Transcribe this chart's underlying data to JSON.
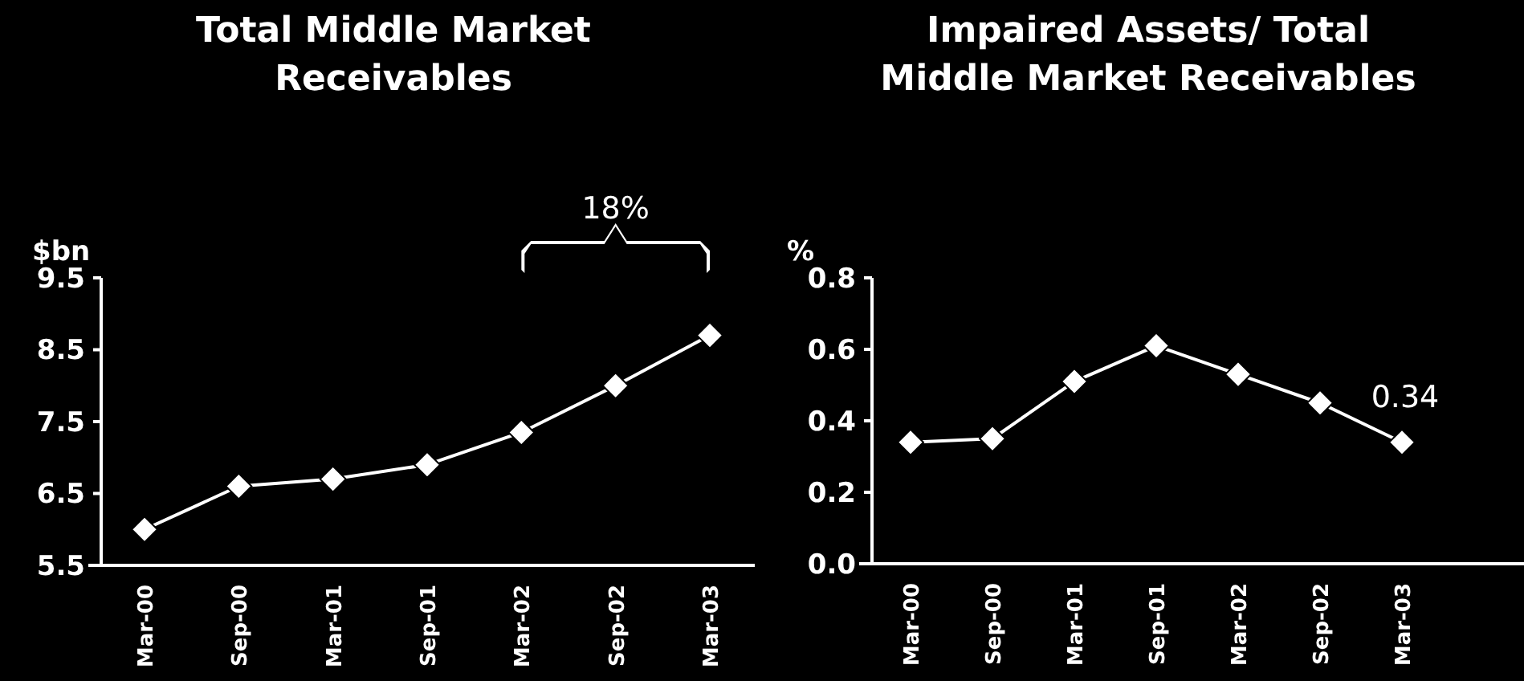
{
  "chart_data": [
    {
      "type": "line",
      "title": "Total Middle Market\nReceivables",
      "ylabel": "$bn",
      "categories": [
        "Mar-00",
        "Sep-00",
        "Mar-01",
        "Sep-01",
        "Mar-02",
        "Sep-02",
        "Mar-03"
      ],
      "series": [
        {
          "color": "#ffffff",
          "values": [
            6.0,
            6.6,
            6.7,
            6.9,
            7.35,
            8.0,
            8.7
          ]
        }
      ],
      "ylim": [
        5.5,
        9.5
      ],
      "yticks": [
        {
          "value": 5.5,
          "label": "5.5"
        },
        {
          "value": 6.5,
          "label": "6.5"
        },
        {
          "value": 7.5,
          "label": "7.5"
        },
        {
          "value": 8.5,
          "label": "8.5"
        },
        {
          "value": 9.5,
          "label": "9.5"
        }
      ],
      "marker": "diamond",
      "grid": false,
      "annotations": [
        "18%"
      ]
    },
    {
      "type": "line",
      "title": "Impaired Assets/ Total\nMiddle Market Receivables",
      "ylabel": "%",
      "categories": [
        "Mar-00",
        "Sep-00",
        "Mar-01",
        "Sep-01",
        "Mar-02",
        "Sep-02",
        "Mar-03"
      ],
      "series": [
        {
          "color": "#ffffff",
          "values": [
            0.34,
            0.35,
            0.51,
            0.61,
            0.53,
            0.45,
            0.34
          ],
          "value_labels": [
            null,
            null,
            null,
            null,
            null,
            null,
            "0.34"
          ]
        }
      ],
      "ylim": [
        0,
        0.8
      ],
      "yticks": [
        {
          "value": 0,
          "label": "0.0"
        },
        {
          "value": 0.2,
          "label": "0.2"
        },
        {
          "value": 0.4,
          "label": "0.4"
        },
        {
          "value": 0.6,
          "label": "0.6"
        },
        {
          "value": 0.8,
          "label": "0.8"
        }
      ],
      "marker": "diamond",
      "grid": false
    }
  ]
}
